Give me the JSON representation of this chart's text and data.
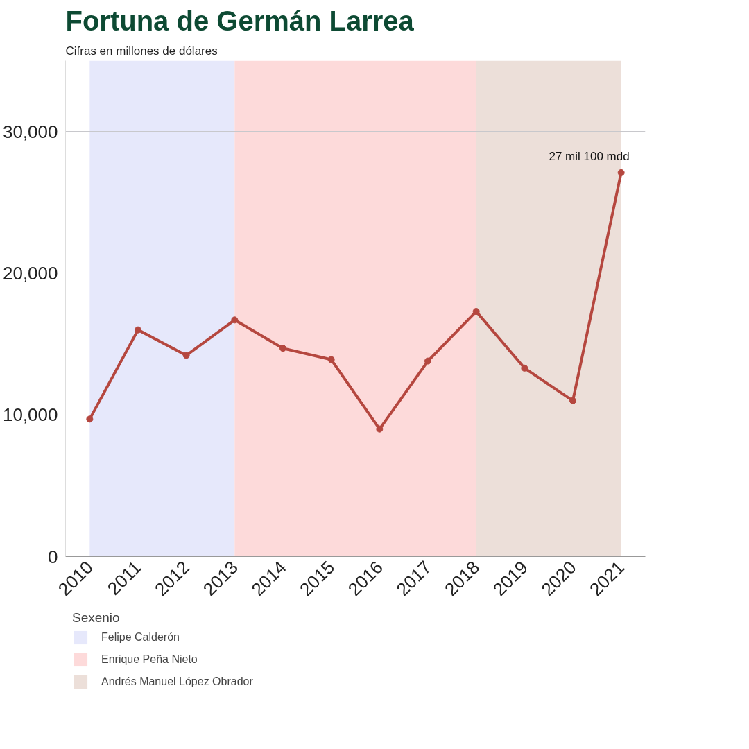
{
  "chart_data": {
    "type": "line",
    "title": "Fortuna de Germán Larrea",
    "subtitle": "Cifras en millones de dólares",
    "x": [
      2010,
      2011,
      2012,
      2013,
      2014,
      2015,
      2016,
      2017,
      2018,
      2019,
      2020,
      2021
    ],
    "series": [
      {
        "color": "#b5473f",
        "values": [
          9700,
          16000,
          14200,
          16700,
          14700,
          13900,
          9000,
          13800,
          17300,
          13300,
          11000,
          27100
        ]
      }
    ],
    "xlim": [
      2009.5,
      2021.5
    ],
    "xticks": [
      2010,
      2011,
      2012,
      2013,
      2014,
      2015,
      2016,
      2017,
      2018,
      2019,
      2020,
      2021
    ],
    "ylim": [
      0,
      35000
    ],
    "yticks": [
      {
        "value": 0,
        "label": "0"
      },
      {
        "value": 10000,
        "label": "10,000"
      },
      {
        "value": 20000,
        "label": "20,000"
      },
      {
        "value": 30000,
        "label": "30,000"
      }
    ],
    "bands": [
      {
        "axis": "x",
        "from": 2010,
        "to": 2013,
        "label": "Felipe Calderón",
        "color": "#e6e8fb"
      },
      {
        "axis": "x",
        "from": 2013,
        "to": 2018,
        "label": "Enrique Peña Nieto",
        "color": "#fddada"
      },
      {
        "axis": "x",
        "from": 2018,
        "to": 2021,
        "label": "Andrés Manuel López Obrador",
        "color": "#ecdfd9"
      }
    ],
    "legend_title": "Sexenio",
    "legend": "bottom left",
    "annotations": [
      {
        "text": "27 mil 100 mdd",
        "x": 2021,
        "y": 27100
      }
    ],
    "grid": "y",
    "marker": "circle",
    "line_style": "solid"
  }
}
